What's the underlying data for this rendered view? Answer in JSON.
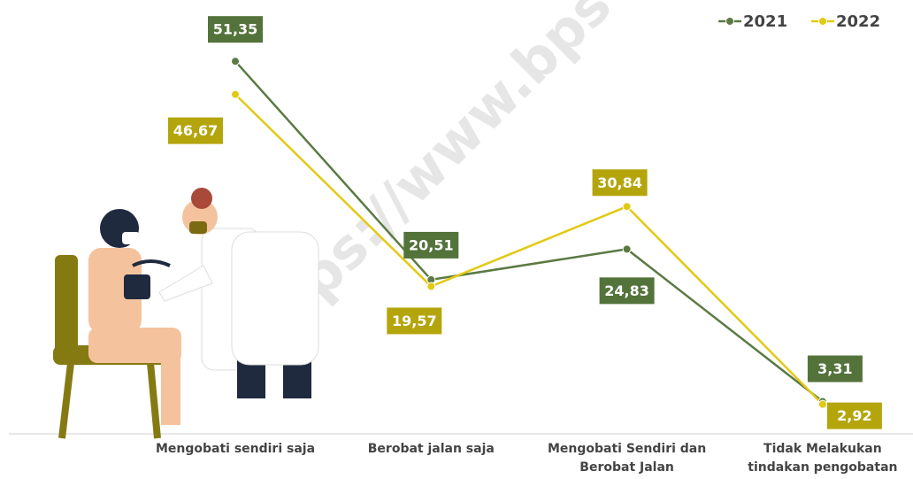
{
  "chart_data": {
    "type": "line",
    "watermark": "https://www.bps",
    "categories": [
      "Mengobati sendiri saja",
      "Berobat jalan saja",
      "Mengobati Sendiri dan\nBerobat Jalan",
      "Tidak Melakukan\ntindakan pengobatan"
    ],
    "series": [
      {
        "name": "2021",
        "color": "#5b7a43",
        "label_color": "#53733a",
        "values": [
          51.35,
          20.51,
          24.83,
          3.31
        ],
        "value_labels": [
          "51,35",
          "20,51",
          "24,83",
          "3,31"
        ]
      },
      {
        "name": "2022",
        "color": "#e3c914",
        "label_color": "#b5a50c",
        "values": [
          46.67,
          19.57,
          30.84,
          2.92
        ],
        "value_labels": [
          "46,67",
          "19,57",
          "30,84",
          "2,92"
        ]
      }
    ],
    "ylim": [
      0,
      55
    ],
    "legend": "top-right"
  }
}
